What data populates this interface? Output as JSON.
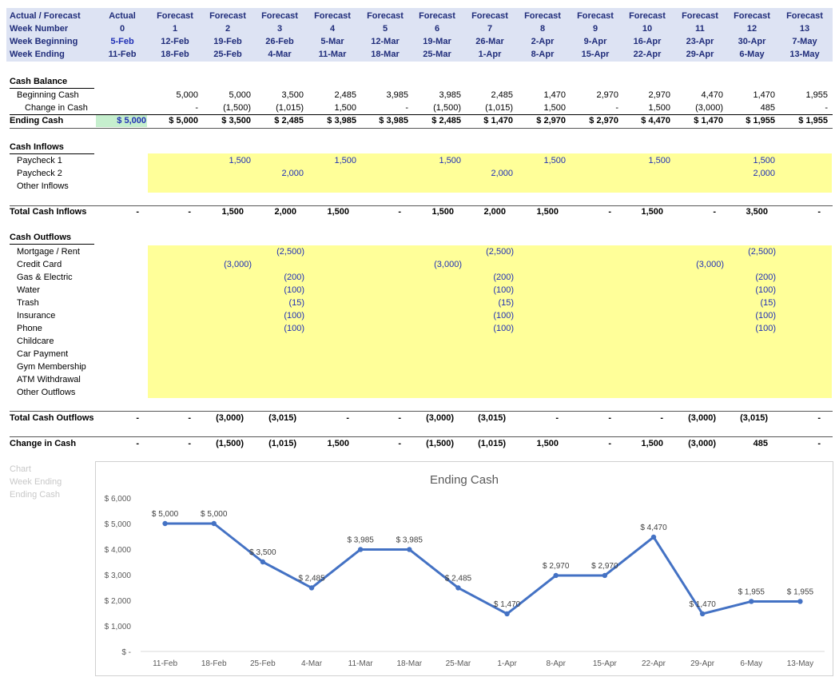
{
  "header": {
    "row_labels": [
      "Actual / Forecast",
      "Week Number",
      "Week Beginning",
      "Week Ending"
    ],
    "columns": [
      {
        "type": "Actual",
        "week": "0",
        "begin": "5-Feb",
        "end": "11-Feb"
      },
      {
        "type": "Forecast",
        "week": "1",
        "begin": "12-Feb",
        "end": "18-Feb"
      },
      {
        "type": "Forecast",
        "week": "2",
        "begin": "19-Feb",
        "end": "25-Feb"
      },
      {
        "type": "Forecast",
        "week": "3",
        "begin": "26-Feb",
        "end": "4-Mar"
      },
      {
        "type": "Forecast",
        "week": "4",
        "begin": "5-Mar",
        "end": "11-Mar"
      },
      {
        "type": "Forecast",
        "week": "5",
        "begin": "12-Mar",
        "end": "18-Mar"
      },
      {
        "type": "Forecast",
        "week": "6",
        "begin": "19-Mar",
        "end": "25-Mar"
      },
      {
        "type": "Forecast",
        "week": "7",
        "begin": "26-Mar",
        "end": "1-Apr"
      },
      {
        "type": "Forecast",
        "week": "8",
        "begin": "2-Apr",
        "end": "8-Apr"
      },
      {
        "type": "Forecast",
        "week": "9",
        "begin": "9-Apr",
        "end": "15-Apr"
      },
      {
        "type": "Forecast",
        "week": "10",
        "begin": "16-Apr",
        "end": "22-Apr"
      },
      {
        "type": "Forecast",
        "week": "11",
        "begin": "23-Apr",
        "end": "29-Apr"
      },
      {
        "type": "Forecast",
        "week": "12",
        "begin": "30-Apr",
        "end": "6-May"
      },
      {
        "type": "Forecast",
        "week": "13",
        "begin": "7-May",
        "end": "13-May"
      }
    ]
  },
  "cash_balance": {
    "title": "Cash Balance",
    "beginning_label": "Beginning Cash",
    "beginning": [
      "",
      "5,000",
      "5,000",
      "3,500",
      "2,485",
      "3,985",
      "3,985",
      "2,485",
      "1,470",
      "2,970",
      "2,970",
      "4,470",
      "1,470",
      "1,955"
    ],
    "change_label": "Change in Cash",
    "change": [
      "",
      "-",
      "(1,500)",
      "(1,015)",
      "1,500",
      "-",
      "(1,500)",
      "(1,015)",
      "1,500",
      "-",
      "1,500",
      "(3,000)",
      "485",
      "-"
    ],
    "ending_label": "Ending Cash",
    "ending": [
      "$ 5,000",
      "$ 5,000",
      "$ 3,500",
      "$ 2,485",
      "$ 3,985",
      "$ 3,985",
      "$ 2,485",
      "$ 1,470",
      "$ 2,970",
      "$ 2,970",
      "$ 4,470",
      "$ 1,470",
      "$ 1,955",
      "$ 1,955"
    ]
  },
  "cash_inflows": {
    "title": "Cash Inflows",
    "rows": [
      {
        "label": "Paycheck 1",
        "values": [
          "",
          "",
          "1,500",
          "",
          "1,500",
          "",
          "1,500",
          "",
          "1,500",
          "",
          "1,500",
          "",
          "1,500",
          ""
        ]
      },
      {
        "label": "Paycheck 2",
        "values": [
          "",
          "",
          "",
          "2,000",
          "",
          "",
          "",
          "2,000",
          "",
          "",
          "",
          "",
          "2,000",
          ""
        ]
      },
      {
        "label": "Other Inflows",
        "values": [
          "",
          "",
          "",
          "",
          "",
          "",
          "",
          "",
          "",
          "",
          "",
          "",
          "",
          ""
        ]
      }
    ],
    "total_label": "Total Cash Inflows",
    "total": [
      "-",
      "-",
      "1,500",
      "2,000",
      "1,500",
      "-",
      "1,500",
      "2,000",
      "1,500",
      "-",
      "1,500",
      "-",
      "3,500",
      "-"
    ]
  },
  "cash_outflows": {
    "title": "Cash Outflows",
    "rows": [
      {
        "label": "Mortgage / Rent",
        "values": [
          "",
          "",
          "",
          "(2,500)",
          "",
          "",
          "",
          "(2,500)",
          "",
          "",
          "",
          "",
          "(2,500)",
          ""
        ]
      },
      {
        "label": "Credit Card",
        "values": [
          "",
          "",
          "(3,000)",
          "",
          "",
          "",
          "(3,000)",
          "",
          "",
          "",
          "",
          "(3,000)",
          "",
          ""
        ]
      },
      {
        "label": "Gas & Electric",
        "values": [
          "",
          "",
          "",
          "(200)",
          "",
          "",
          "",
          "(200)",
          "",
          "",
          "",
          "",
          "(200)",
          ""
        ]
      },
      {
        "label": "Water",
        "values": [
          "",
          "",
          "",
          "(100)",
          "",
          "",
          "",
          "(100)",
          "",
          "",
          "",
          "",
          "(100)",
          ""
        ]
      },
      {
        "label": "Trash",
        "values": [
          "",
          "",
          "",
          "(15)",
          "",
          "",
          "",
          "(15)",
          "",
          "",
          "",
          "",
          "(15)",
          ""
        ]
      },
      {
        "label": "Insurance",
        "values": [
          "",
          "",
          "",
          "(100)",
          "",
          "",
          "",
          "(100)",
          "",
          "",
          "",
          "",
          "(100)",
          ""
        ]
      },
      {
        "label": "Phone",
        "values": [
          "",
          "",
          "",
          "(100)",
          "",
          "",
          "",
          "(100)",
          "",
          "",
          "",
          "",
          "(100)",
          ""
        ]
      },
      {
        "label": "Childcare",
        "values": [
          "",
          "",
          "",
          "",
          "",
          "",
          "",
          "",
          "",
          "",
          "",
          "",
          "",
          ""
        ]
      },
      {
        "label": "Car Payment",
        "values": [
          "",
          "",
          "",
          "",
          "",
          "",
          "",
          "",
          "",
          "",
          "",
          "",
          "",
          ""
        ]
      },
      {
        "label": "Gym Membership",
        "values": [
          "",
          "",
          "",
          "",
          "",
          "",
          "",
          "",
          "",
          "",
          "",
          "",
          "",
          ""
        ]
      },
      {
        "label": "ATM Withdrawal",
        "values": [
          "",
          "",
          "",
          "",
          "",
          "",
          "",
          "",
          "",
          "",
          "",
          "",
          "",
          ""
        ]
      },
      {
        "label": "Other Outflows",
        "values": [
          "",
          "",
          "",
          "",
          "",
          "",
          "",
          "",
          "",
          "",
          "",
          "",
          "",
          ""
        ]
      }
    ],
    "total_label": "Total Cash Outflows",
    "total": [
      "-",
      "-",
      "(3,000)",
      "(3,015)",
      "-",
      "-",
      "(3,000)",
      "(3,015)",
      "-",
      "-",
      "-",
      "(3,000)",
      "(3,015)",
      "-"
    ]
  },
  "change_in_cash": {
    "label": "Change in Cash",
    "values": [
      "-",
      "-",
      "(1,500)",
      "(1,015)",
      "1,500",
      "-",
      "(1,500)",
      "(1,015)",
      "1,500",
      "-",
      "1,500",
      "(3,000)",
      "485",
      "-"
    ]
  },
  "chart_ghost_labels": [
    "Chart",
    "Week Ending",
    "Ending Cash"
  ],
  "chart_data": {
    "type": "line",
    "title": "Ending Cash",
    "x": [
      "11-Feb",
      "18-Feb",
      "25-Feb",
      "4-Mar",
      "11-Mar",
      "18-Mar",
      "25-Mar",
      "1-Apr",
      "8-Apr",
      "15-Apr",
      "22-Apr",
      "29-Apr",
      "6-May",
      "13-May"
    ],
    "series": [
      {
        "values": [
          5000,
          5000,
          3500,
          2485,
          3985,
          3985,
          2485,
          1470,
          2970,
          2970,
          4470,
          1470,
          1955,
          1955
        ],
        "labels": [
          "$ 5,000",
          "$ 5,000",
          "$ 3,500",
          "$ 2,485",
          "$ 3,985",
          "$ 3,985",
          "$ 2,485",
          "$ 1,470",
          "$ 2,970",
          "$ 2,970",
          "$ 4,470",
          "$ 1,470",
          "$ 1,955",
          "$ 1,955"
        ]
      }
    ],
    "ylim": [
      0,
      6000
    ],
    "yticks": [
      0,
      1000,
      2000,
      3000,
      4000,
      5000,
      6000
    ],
    "ytick_labels": [
      "$ -",
      "$ 1,000",
      "$ 2,000",
      "$ 3,000",
      "$ 4,000",
      "$ 5,000",
      "$ 6,000"
    ],
    "grid": false,
    "line_color": "#4472c4"
  }
}
